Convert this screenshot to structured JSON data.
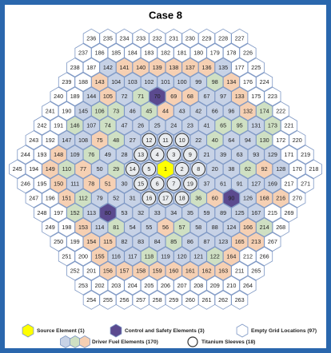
{
  "title": "Case 8",
  "rows": [
    [
      236,
      235,
      234,
      233,
      232,
      231,
      230,
      229,
      228,
      227
    ],
    [
      237,
      186,
      185,
      184,
      183,
      182,
      181,
      180,
      179,
      178,
      226
    ],
    [
      238,
      187,
      142,
      141,
      140,
      139,
      138,
      137,
      136,
      135,
      177,
      225
    ],
    [
      239,
      188,
      143,
      104,
      103,
      102,
      101,
      100,
      99,
      98,
      134,
      176,
      224
    ],
    [
      240,
      189,
      144,
      105,
      72,
      71,
      70,
      69,
      68,
      67,
      97,
      133,
      175,
      223
    ],
    [
      241,
      190,
      145,
      106,
      73,
      46,
      45,
      44,
      43,
      42,
      66,
      96,
      132,
      174,
      222
    ],
    [
      242,
      191,
      146,
      107,
      74,
      47,
      26,
      25,
      24,
      23,
      41,
      65,
      95,
      131,
      173,
      221
    ],
    [
      243,
      192,
      147,
      108,
      75,
      48,
      27,
      12,
      11,
      10,
      22,
      40,
      64,
      94,
      130,
      172,
      220
    ],
    [
      244,
      193,
      148,
      109,
      76,
      49,
      28,
      13,
      4,
      3,
      9,
      21,
      39,
      63,
      93,
      129,
      171,
      219
    ],
    [
      245,
      194,
      149,
      110,
      77,
      50,
      29,
      14,
      5,
      1,
      2,
      8,
      20,
      38,
      62,
      92,
      128,
      170,
      218
    ],
    [
      246,
      195,
      150,
      111,
      78,
      51,
      30,
      15,
      6,
      7,
      19,
      37,
      61,
      91,
      127,
      169,
      217,
      271
    ],
    [
      247,
      196,
      151,
      112,
      79,
      52,
      31,
      16,
      17,
      18,
      36,
      60,
      90,
      126,
      168,
      216,
      270
    ],
    [
      248,
      197,
      152,
      113,
      80,
      53,
      32,
      33,
      34,
      35,
      59,
      89,
      125,
      167,
      215,
      269
    ],
    [
      249,
      198,
      153,
      114,
      81,
      54,
      55,
      56,
      57,
      58,
      88,
      124,
      166,
      214,
      268
    ],
    [
      250,
      199,
      154,
      115,
      82,
      83,
      84,
      85,
      86,
      87,
      123,
      165,
      213,
      267
    ],
    [
      251,
      200,
      155,
      116,
      117,
      118,
      119,
      120,
      121,
      122,
      164,
      212,
      266
    ],
    [
      252,
      201,
      156,
      157,
      158,
      159,
      160,
      161,
      162,
      163,
      211,
      265
    ],
    [
      253,
      202,
      203,
      204,
      205,
      206,
      207,
      208,
      209,
      210,
      264
    ],
    [
      254,
      255,
      256,
      257,
      258,
      259,
      260,
      261,
      262,
      263
    ]
  ],
  "groups": {
    "source": [
      1
    ],
    "control": [
      70,
      80,
      90
    ],
    "sleeves": [
      2,
      3,
      4,
      5,
      6,
      7,
      8,
      9,
      10,
      11,
      12,
      13,
      14,
      15,
      16,
      17,
      18,
      19
    ],
    "green": [
      182,
      190,
      189,
      146,
      106,
      73,
      74,
      71,
      65,
      76,
      81,
      197,
      152,
      205,
      206,
      214,
      174,
      173,
      36,
      29,
      48,
      118,
      85,
      95,
      62,
      98,
      122,
      57,
      45,
      40,
      130,
      110,
      112
    ],
    "peach": [
      141,
      140,
      139,
      138,
      137,
      136,
      143,
      134,
      133,
      132,
      148,
      149,
      150,
      151,
      153,
      154,
      155,
      156,
      157,
      158,
      159,
      160,
      161,
      162,
      163,
      164,
      165,
      166,
      168,
      75,
      77,
      78,
      105,
      69,
      68,
      213,
      216,
      44,
      51,
      56,
      60,
      92,
      115
    ],
    "empty": [
      170,
      171,
      172,
      175,
      176,
      177,
      178,
      179,
      180,
      181,
      182,
      183,
      184,
      185,
      186,
      187,
      188,
      189,
      190,
      191,
      192,
      193,
      194,
      195,
      196,
      197,
      198,
      199,
      200,
      201,
      202,
      203,
      204,
      205,
      206,
      207,
      208,
      209,
      210,
      211,
      212,
      215,
      217,
      218,
      219,
      220,
      221,
      222,
      223,
      224,
      225,
      226,
      227,
      228,
      229,
      230,
      231,
      232,
      233,
      234,
      235,
      236,
      237,
      238,
      239,
      240,
      241,
      242,
      243,
      244,
      245,
      246,
      247,
      248,
      249,
      250,
      251,
      252,
      253,
      254,
      255,
      256,
      257,
      258,
      259,
      260,
      261,
      262,
      263,
      264,
      265,
      266,
      267,
      268,
      269,
      270,
      271
    ]
  },
  "colors": {
    "source": "#ffff00",
    "control": "#5b4a8f",
    "green": "#cfe0c3",
    "peach": "#f6d0b3",
    "fuel": "#c7d2e6",
    "empty": "#ffffff",
    "stroke": "#7d97c4"
  },
  "legend": [
    {
      "label": "Source Element (1)",
      "kind": "source"
    },
    {
      "label": "Control and Safety Elements (3)",
      "kind": "control"
    },
    {
      "label": "Empty Grid Locations (97)",
      "kind": "empty"
    },
    {
      "label": "Driver Fuel Elements (170)",
      "kind": "fuel"
    },
    {
      "label": "Titanium Sleeves (18)",
      "kind": "sleeves"
    }
  ]
}
